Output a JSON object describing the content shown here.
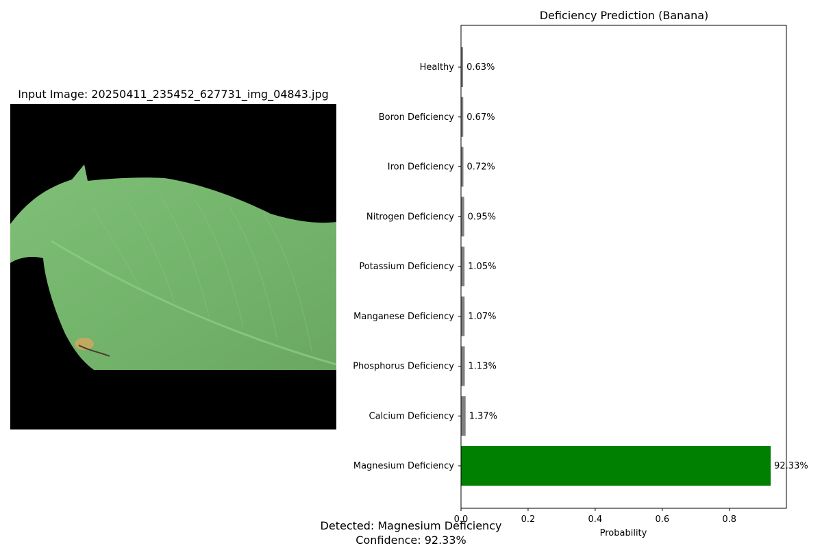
{
  "image_panel": {
    "title": "Input Image: 20250411_235452_627731_img_04843.jpg"
  },
  "chart_data": {
    "type": "bar",
    "orientation": "horizontal",
    "title": "Deficiency Prediction (Banana)",
    "xlabel": "Probability",
    "ylabel": "",
    "xlim": [
      0,
      0.97
    ],
    "x_ticks": [
      0.0,
      0.2,
      0.4,
      0.6,
      0.8
    ],
    "x_tick_labels": [
      "0.0",
      "0.2",
      "0.4",
      "0.6",
      "0.8"
    ],
    "grid": false,
    "categories": [
      "Healthy",
      "Boron Deficiency",
      "Iron Deficiency",
      "Nitrogen Deficiency",
      "Potassium Deficiency",
      "Manganese Deficiency",
      "Phosphorus Deficiency",
      "Calcium Deficiency",
      "Magnesium Deficiency"
    ],
    "values": [
      0.0063,
      0.0067,
      0.0072,
      0.0095,
      0.0105,
      0.0107,
      0.0113,
      0.0137,
      0.9233
    ],
    "value_labels": [
      "0.63%",
      "0.67%",
      "0.72%",
      "0.95%",
      "1.05%",
      "1.07%",
      "1.13%",
      "1.37%",
      "92.33%"
    ],
    "bar_colors": [
      "#808080",
      "#808080",
      "#808080",
      "#808080",
      "#808080",
      "#808080",
      "#808080",
      "#808080",
      "#008000"
    ],
    "highlight_color": "#008000",
    "default_color": "#808080"
  },
  "footer": {
    "detected": "Detected: Magnesium Deficiency",
    "confidence": "Confidence: 92.33%"
  }
}
